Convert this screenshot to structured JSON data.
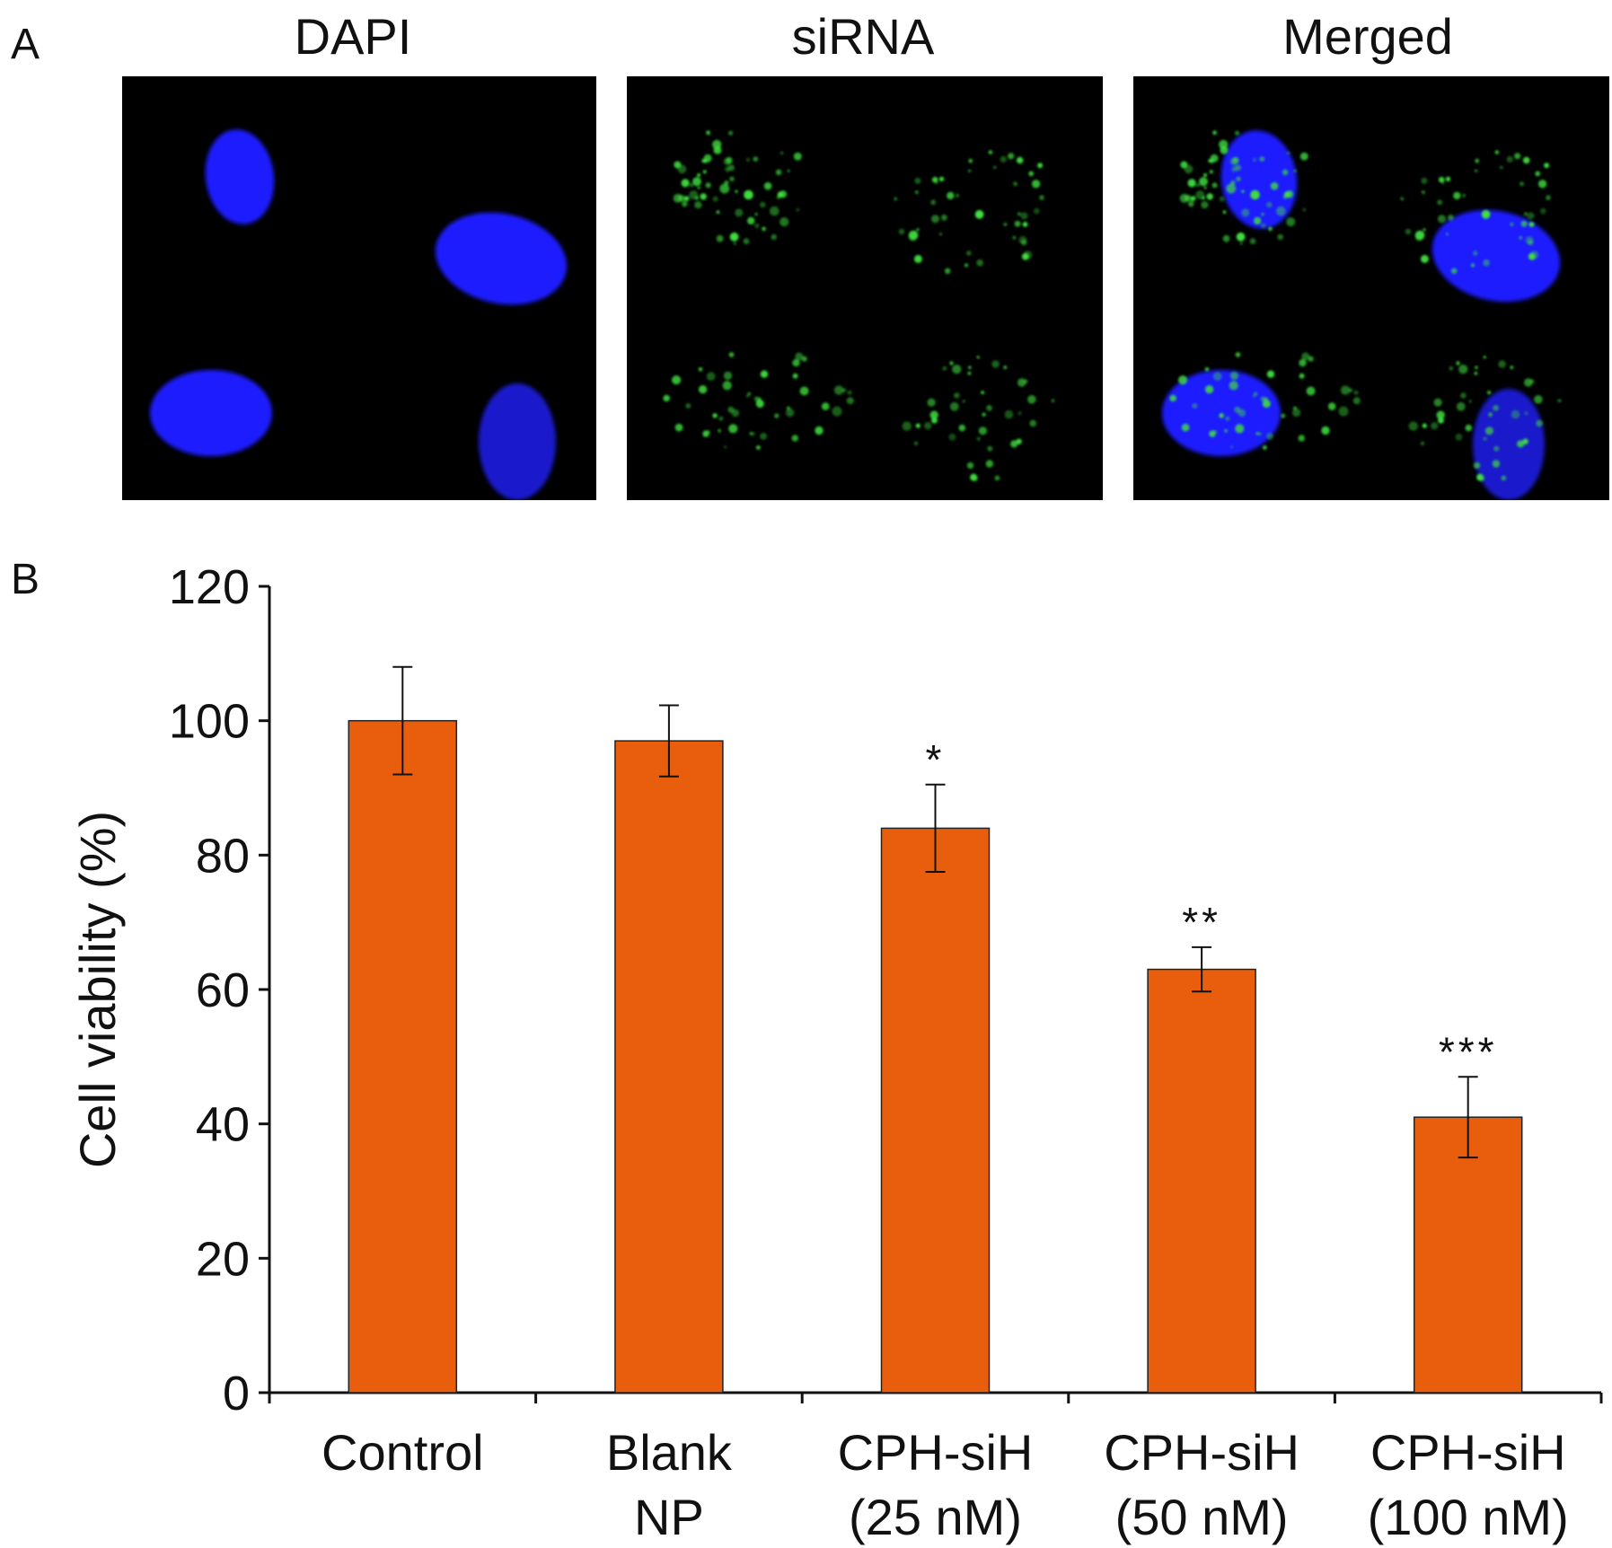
{
  "panel_a": {
    "letter": "A",
    "titles": [
      "DAPI",
      "siRNA",
      "Merged"
    ],
    "colors": {
      "dapi": "#1f1fff",
      "sirna": "#3fe03f",
      "background": "#000000"
    }
  },
  "panel_b": {
    "letter": "B"
  },
  "chart_data": {
    "type": "bar",
    "title": "",
    "xlabel": "",
    "ylabel": "Cell viability (%)",
    "ylim": [
      0,
      120
    ],
    "yticks": [
      0,
      20,
      40,
      60,
      80,
      100,
      120
    ],
    "categories": [
      [
        "Control"
      ],
      [
        "Blank",
        "NP"
      ],
      [
        "CPH-siH",
        "(25 nM)"
      ],
      [
        "CPH-siH",
        "(50 nM)"
      ],
      [
        "CPH-siH",
        "(100 nM)"
      ]
    ],
    "values": [
      100,
      97,
      84,
      63,
      41
    ],
    "error": [
      8,
      5.3,
      6.5,
      3.3,
      6
    ],
    "significance": [
      "",
      "",
      "*",
      "**",
      "***"
    ],
    "bar_color": "#e85e0c",
    "grid": false,
    "legend": "none"
  }
}
